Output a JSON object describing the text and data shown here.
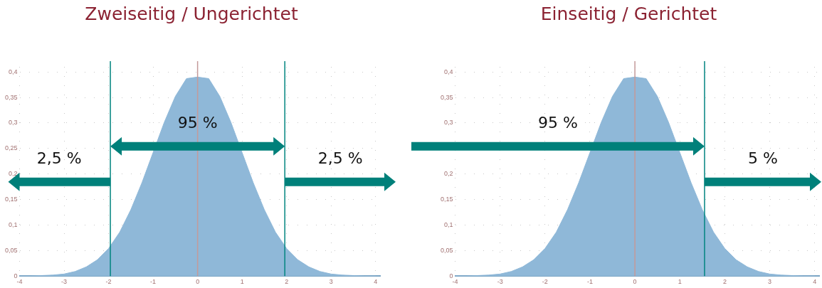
{
  "chart_data": [
    {
      "type": "area",
      "title": "Zweiseitig / Ungerichtet",
      "x": [
        -4,
        -3.75,
        -3.5,
        -3.25,
        -3,
        -2.75,
        -2.5,
        -2.25,
        -2,
        -1.75,
        -1.5,
        -1.25,
        -1,
        -0.75,
        -0.5,
        -0.25,
        0,
        0.25,
        0.5,
        0.75,
        1,
        1.25,
        1.5,
        1.75,
        2,
        2.25,
        2.5,
        2.75,
        3,
        3.25,
        3.5,
        3.75,
        4
      ],
      "series": [
        {
          "color": "#8fb8d8",
          "values": [
            0,
            0,
            0.001,
            0.002,
            0.004,
            0.009,
            0.018,
            0.032,
            0.054,
            0.086,
            0.13,
            0.183,
            0.242,
            0.301,
            0.352,
            0.387,
            0.39,
            0.387,
            0.352,
            0.301,
            0.242,
            0.183,
            0.13,
            0.086,
            0.054,
            0.032,
            0.018,
            0.009,
            0.004,
            0.002,
            0.001,
            0,
            0
          ]
        }
      ],
      "xlim": [
        -4,
        4.1
      ],
      "xticks": [
        -4,
        -3,
        -2,
        -1,
        0,
        1,
        2,
        3,
        4
      ],
      "ylim": [
        0,
        0.41
      ],
      "yticks": [
        0,
        {
          "value": 0.05,
          "label": "0,05"
        },
        {
          "value": 0.1,
          "label": "0,1"
        },
        {
          "value": 0.15,
          "label": "0,15"
        },
        {
          "value": 0.2,
          "label": "0,2"
        },
        {
          "value": 0.25,
          "label": "0,25"
        },
        {
          "value": 0.3,
          "label": "0,3"
        },
        {
          "value": 0.35,
          "label": "0,35"
        },
        {
          "value": 0.4,
          "label": "0,4"
        }
      ],
      "grid": true,
      "legend": false,
      "marker": "none",
      "ref_lines": [
        {
          "axis": "x",
          "value": -1.96,
          "color": "#00847f"
        },
        {
          "axis": "x",
          "value": 1.96,
          "color": "#00847f"
        },
        {
          "axis": "x",
          "value": 0,
          "color": "#c49a9a"
        }
      ],
      "annotations": [
        "2,5 %",
        "95 %",
        "2,5 %"
      ]
    },
    {
      "type": "area",
      "title": "Einseitig / Gerichtet",
      "x": [
        -4,
        -3.75,
        -3.5,
        -3.25,
        -3,
        -2.75,
        -2.5,
        -2.25,
        -2,
        -1.75,
        -1.5,
        -1.25,
        -1,
        -0.75,
        -0.5,
        -0.25,
        0,
        0.25,
        0.5,
        0.75,
        1,
        1.25,
        1.5,
        1.75,
        2,
        2.25,
        2.5,
        2.75,
        3,
        3.25,
        3.5,
        3.75,
        4
      ],
      "series": [
        {
          "color": "#8fb8d8",
          "values": [
            0,
            0,
            0.001,
            0.002,
            0.004,
            0.009,
            0.018,
            0.032,
            0.054,
            0.086,
            0.13,
            0.183,
            0.242,
            0.301,
            0.352,
            0.387,
            0.39,
            0.387,
            0.352,
            0.301,
            0.242,
            0.183,
            0.13,
            0.086,
            0.054,
            0.032,
            0.018,
            0.009,
            0.004,
            0.002,
            0.001,
            0,
            0
          ]
        }
      ],
      "xlim": [
        -4,
        4.1
      ],
      "xticks": [
        -4,
        -3,
        -2,
        -1,
        0,
        1,
        2,
        3,
        4
      ],
      "ylim": [
        0,
        0.41
      ],
      "yticks": [
        0,
        {
          "value": 0.05,
          "label": "0,05"
        },
        {
          "value": 0.1,
          "label": "0,1"
        },
        {
          "value": 0.15,
          "label": "0,15"
        },
        {
          "value": 0.2,
          "label": "0,2"
        },
        {
          "value": 0.25,
          "label": null
        },
        {
          "value": 0.3,
          "label": "0,3"
        },
        {
          "value": 0.35,
          "label": "0,35"
        },
        {
          "value": 0.4,
          "label": "0,4"
        }
      ],
      "grid": true,
      "legend": false,
      "marker": "none",
      "ref_lines": [
        {
          "axis": "x",
          "value": 1.55,
          "color": "#00847f"
        },
        {
          "axis": "x",
          "value": 0,
          "color": "#c49a9a"
        }
      ],
      "annotations": [
        "95 %",
        "5 %"
      ]
    }
  ]
}
